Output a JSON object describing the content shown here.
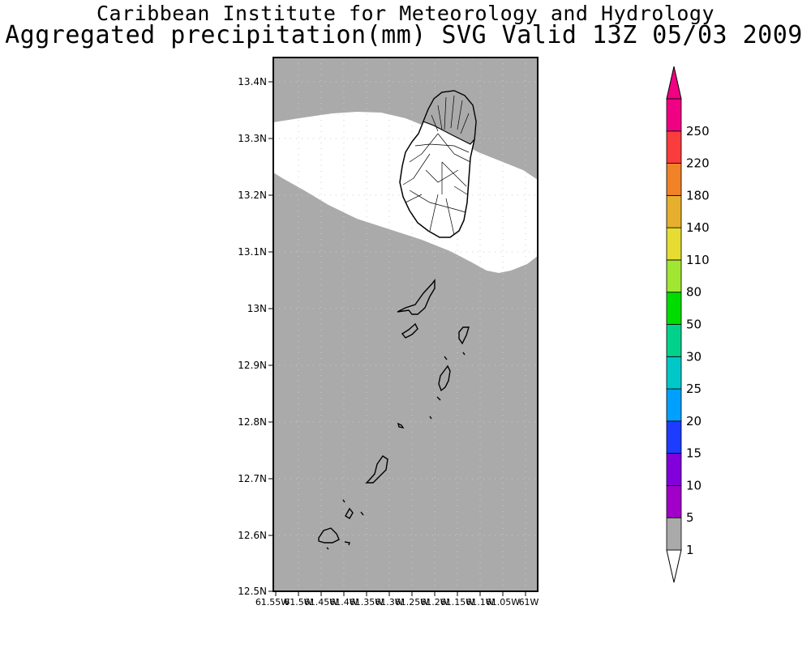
{
  "header": {
    "institute": "Caribbean Institute for Meteorology and Hydrology",
    "product": "Aggregated precipitation(mm) SVG Valid 13Z 05/03 2009"
  },
  "map": {
    "lat_ticks": [
      "13.4N",
      "13.3N",
      "13.2N",
      "13.1N",
      "13N",
      "12.9N",
      "12.8N",
      "12.7N",
      "12.6N",
      "12.5N"
    ],
    "lon_ticks": [
      "61.55W",
      "61.5W",
      "61.45W",
      "61.4W",
      "61.35W",
      "61.3W",
      "61.25W",
      "61.2W",
      "61.15W",
      "61.1W",
      "61.05W",
      "61W"
    ],
    "land_color": "#000000",
    "background_fill": "#aaaaaa",
    "rain_band_fill": "#ffffff"
  },
  "legend": {
    "bins": [
      {
        "label": "1",
        "color": "#aaaaaa"
      },
      {
        "label": "5",
        "color": "#a000c8"
      },
      {
        "label": "10",
        "color": "#8200dc"
      },
      {
        "label": "15",
        "color": "#1e3cff"
      },
      {
        "label": "20",
        "color": "#00a0ff"
      },
      {
        "label": "25",
        "color": "#00c8c8"
      },
      {
        "label": "30",
        "color": "#00d28c"
      },
      {
        "label": "50",
        "color": "#00dc00"
      },
      {
        "label": "80",
        "color": "#a0e632"
      },
      {
        "label": "110",
        "color": "#e6dc32"
      },
      {
        "label": "140",
        "color": "#e6af2d"
      },
      {
        "label": "180",
        "color": "#f08228"
      },
      {
        "label": "220",
        "color": "#fa3c3c"
      },
      {
        "label": "250",
        "color": "#f00082"
      }
    ],
    "under_color": "#ffffff",
    "over_color": "#f00082"
  }
}
